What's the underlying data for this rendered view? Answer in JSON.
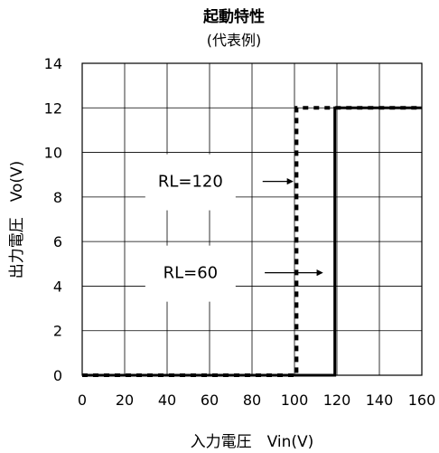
{
  "chart_data": {
    "type": "line",
    "title": "起動特性",
    "subtitle": "(代表例)",
    "xlabel": "入力電圧　Vin(V)",
    "ylabel": "出力電圧　Vo(V)",
    "xlim": [
      0,
      160
    ],
    "ylim": [
      0,
      14
    ],
    "xticks": [
      0,
      20,
      40,
      60,
      80,
      100,
      120,
      140,
      160
    ],
    "yticks": [
      0,
      2,
      4,
      6,
      8,
      10,
      12,
      14
    ],
    "grid": true,
    "series": [
      {
        "name": "RL=120",
        "style": "dotted",
        "color": "#000000",
        "x": [
          0,
          101,
          101,
          104,
          160
        ],
        "y": [
          0,
          0,
          12,
          12,
          12
        ]
      },
      {
        "name": "RL=60",
        "style": "solid",
        "color": "#000000",
        "x": [
          0,
          119,
          119,
          160
        ],
        "y": [
          0,
          0,
          12,
          12
        ]
      }
    ],
    "annotations": [
      {
        "text": "RL=120",
        "x": 51,
        "y": 8.7,
        "arrow_x1": 85,
        "arrow_x2": 99
      },
      {
        "text": "RL=60",
        "x": 51,
        "y": 4.6,
        "arrow_x1": 86,
        "arrow_x2": 113
      }
    ]
  }
}
